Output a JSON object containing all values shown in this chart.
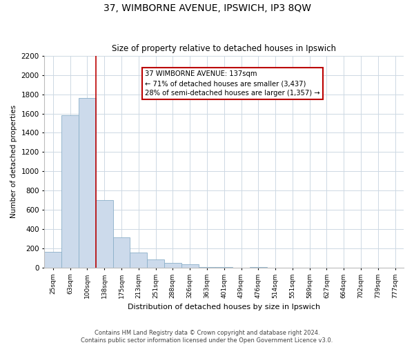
{
  "title": "37, WIMBORNE AVENUE, IPSWICH, IP3 8QW",
  "subtitle": "Size of property relative to detached houses in Ipswich",
  "xlabel": "Distribution of detached houses by size in Ipswich",
  "ylabel": "Number of detached properties",
  "bar_labels": [
    "25sqm",
    "63sqm",
    "100sqm",
    "138sqm",
    "175sqm",
    "213sqm",
    "251sqm",
    "288sqm",
    "326sqm",
    "363sqm",
    "401sqm",
    "439sqm",
    "476sqm",
    "514sqm",
    "551sqm",
    "589sqm",
    "627sqm",
    "664sqm",
    "702sqm",
    "739sqm",
    "777sqm"
  ],
  "bar_values": [
    160,
    1580,
    1760,
    700,
    315,
    155,
    85,
    50,
    30,
    8,
    2,
    0,
    2,
    0,
    0,
    0,
    0,
    0,
    0,
    0,
    0
  ],
  "bar_color": "#ccdaeb",
  "bar_edge_color": "#8aafc8",
  "vline_x": 2.5,
  "vline_color": "#bb0000",
  "annotation_title": "37 WIMBORNE AVENUE: 137sqm",
  "annotation_line1": "← 71% of detached houses are smaller (3,437)",
  "annotation_line2": "28% of semi-detached houses are larger (1,357) →",
  "annotation_box_color": "#ffffff",
  "annotation_box_edgecolor": "#bb0000",
  "ylim": [
    0,
    2200
  ],
  "yticks": [
    0,
    200,
    400,
    600,
    800,
    1000,
    1200,
    1400,
    1600,
    1800,
    2000,
    2200
  ],
  "footer_line1": "Contains HM Land Registry data © Crown copyright and database right 2024.",
  "footer_line2": "Contains public sector information licensed under the Open Government Licence v3.0.",
  "bg_color": "#ffffff",
  "grid_color": "#cdd8e3",
  "figsize": [
    6.0,
    5.0
  ],
  "dpi": 100
}
